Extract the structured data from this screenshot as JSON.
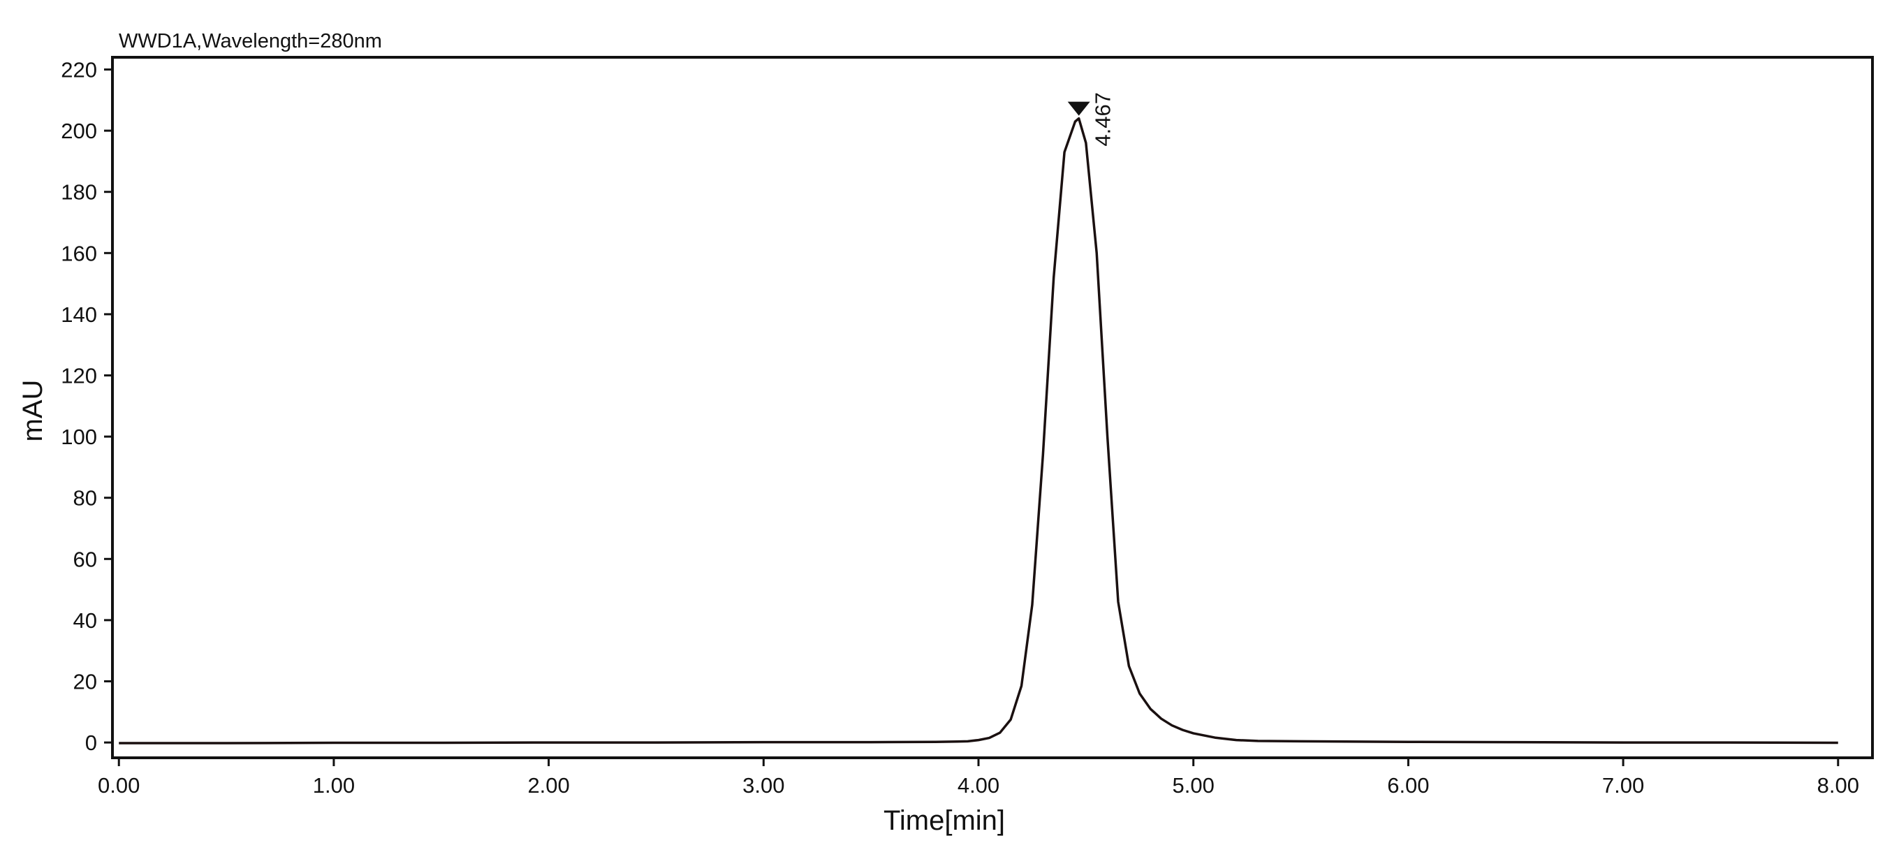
{
  "chart_data": {
    "type": "line",
    "title": "WWD1A,Wavelength=280nm",
    "xlabel": "Time[min]",
    "ylabel": "mAU",
    "xlim": [
      -0.03,
      8.16
    ],
    "ylim": [
      -5,
      224
    ],
    "x_ticks": [
      "0.00",
      "1.00",
      "2.00",
      "3.00",
      "4.00",
      "5.00",
      "6.00",
      "7.00",
      "8.00"
    ],
    "y_ticks": [
      "0",
      "20",
      "40",
      "60",
      "80",
      "100",
      "120",
      "140",
      "160",
      "180",
      "200",
      "220"
    ],
    "grid": false,
    "legend": "none",
    "color": "#1a1010",
    "peak": {
      "x": 4.467,
      "y": 204,
      "label": "4.467"
    },
    "series": [
      {
        "x": [
          0.0,
          0.5,
          1.0,
          1.5,
          2.0,
          2.5,
          3.0,
          3.5,
          3.8,
          3.9,
          3.95,
          4.0,
          4.05,
          4.1,
          4.15,
          4.2,
          4.25,
          4.3,
          4.35,
          4.4,
          4.45,
          4.467,
          4.5,
          4.55,
          4.6,
          4.65,
          4.7,
          4.75,
          4.8,
          4.85,
          4.9,
          4.95,
          5.0,
          5.1,
          5.2,
          5.3,
          5.5,
          6.0,
          6.5,
          7.0,
          7.5,
          8.0
        ],
        "y": [
          -0.2,
          -0.2,
          -0.1,
          -0.1,
          0.0,
          0.0,
          0.1,
          0.1,
          0.2,
          0.3,
          0.4,
          0.8,
          1.5,
          3.2,
          7.5,
          18.5,
          45.0,
          94.0,
          152.0,
          193.0,
          203.0,
          204.0,
          196.0,
          160.0,
          100.0,
          46.0,
          25.0,
          16.0,
          11.0,
          7.8,
          5.6,
          4.1,
          3.0,
          1.6,
          0.8,
          0.5,
          0.4,
          0.2,
          0.1,
          0.0,
          0.0,
          -0.1
        ]
      }
    ]
  }
}
